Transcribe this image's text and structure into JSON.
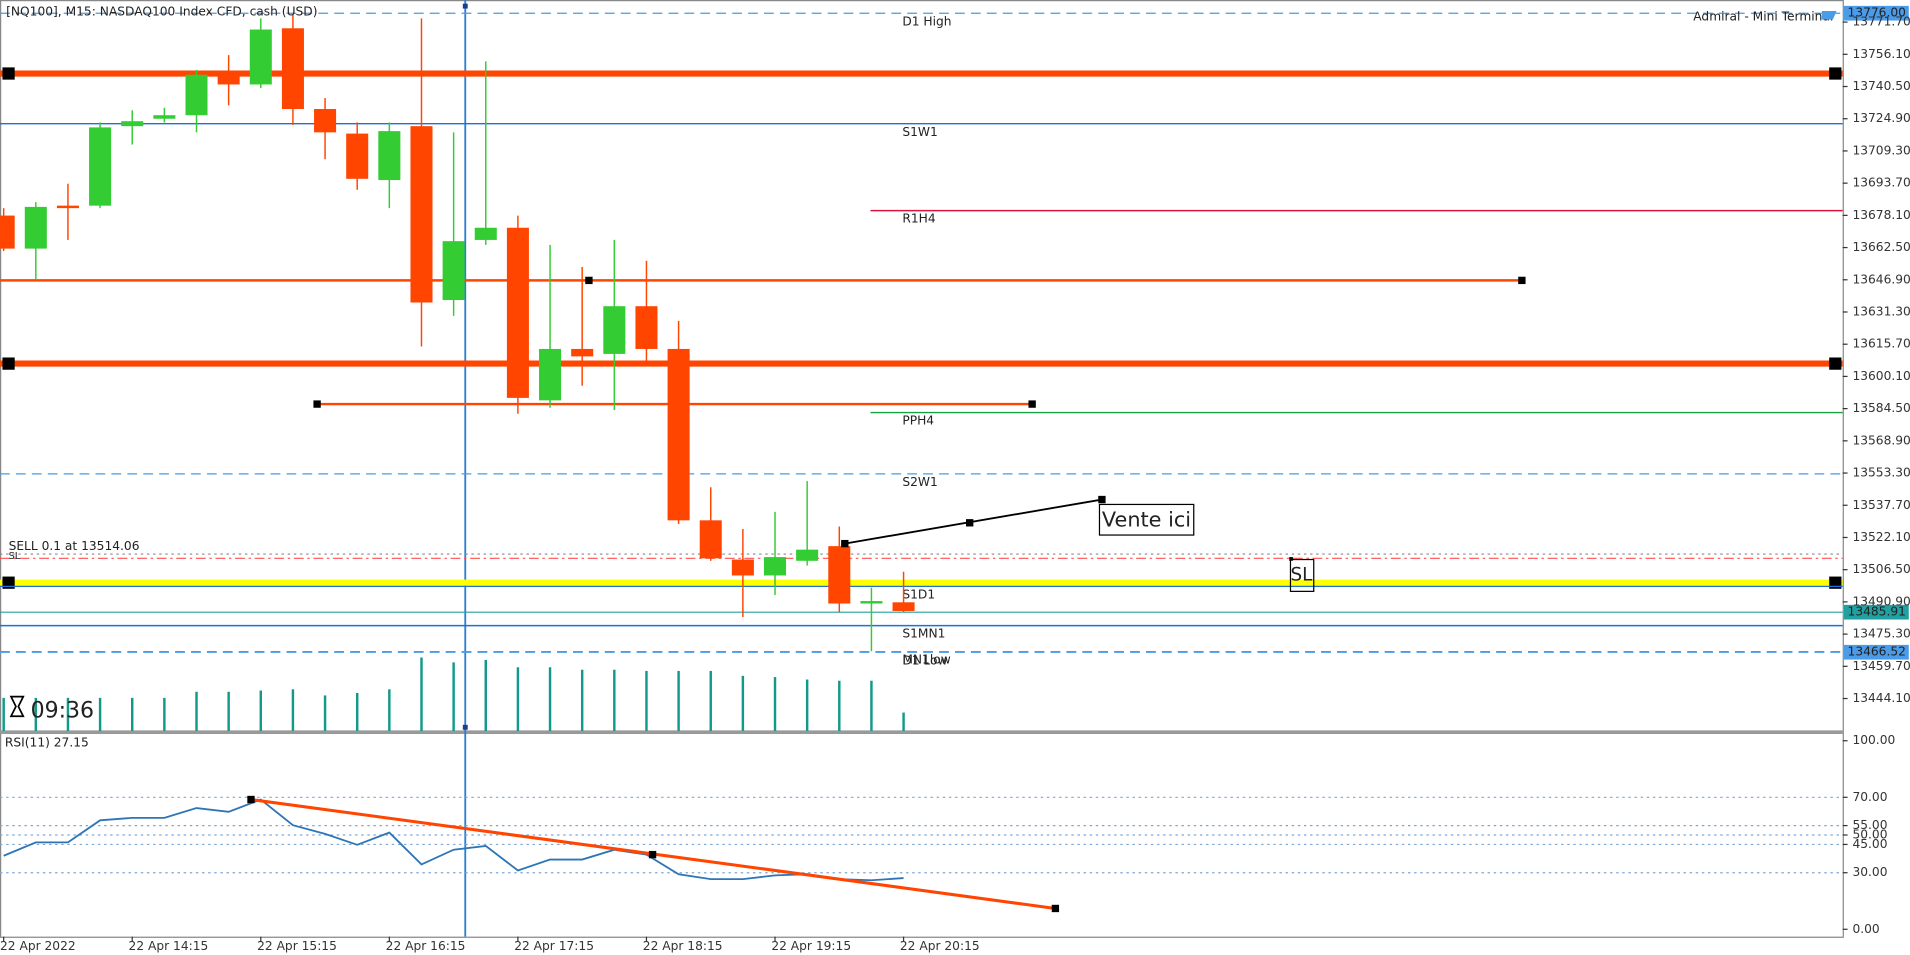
{
  "header": {
    "symbol_title": "[NQ100], M15:  NASDAQ100 Index CFD, cash (USD)",
    "terminal": "Admiral - Mini Terminal",
    "timer": "09:36"
  },
  "chart_data": [
    {
      "type": "candlestick",
      "categories": [
        "22 Apr 2022",
        null,
        null,
        null,
        "22 Apr 14:15",
        null,
        null,
        null,
        "22 Apr 15:15",
        null,
        null,
        null,
        "22 Apr 16:15",
        null,
        null,
        null,
        "22 Apr 17:15",
        null,
        null,
        null,
        "22 Apr 18:15",
        null,
        null,
        null,
        "22 Apr 19:15",
        null,
        null,
        null,
        "22 Apr 20:15"
      ],
      "open": [
        13678.0,
        13662.0,
        13682.8,
        13682.8,
        13721.3,
        13724.9,
        13726.6,
        13746.2,
        13741.5,
        13768.7,
        13729.6,
        13717.7,
        13695.2,
        13721.3,
        13637.1,
        13666.2,
        13672.1,
        13588.5,
        13613.4,
        13611.0,
        13634.1,
        13613.4,
        13530.4,
        13511.4,
        13503.7,
        13510.8,
        13517.9,
        13490.7,
        13490.7
      ],
      "high": [
        13681.6,
        13684.5,
        13693.4,
        13723.1,
        13729.0,
        13730.2,
        13748.6,
        13755.7,
        13773.5,
        13775.3,
        13734.9,
        13723.1,
        13723.1,
        13773.5,
        13718.3,
        13752.7,
        13678.0,
        13663.8,
        13653.1,
        13666.2,
        13656.1,
        13627.0,
        13546.4,
        13526.2,
        13534.5,
        13549.4,
        13527.4,
        13497.8,
        13505.5
      ],
      "low": [
        13660.8,
        13647.2,
        13666.2,
        13681.6,
        13712.4,
        13723.1,
        13718.3,
        13731.4,
        13739.7,
        13721.9,
        13705.3,
        13690.5,
        13681.6,
        13614.6,
        13629.4,
        13663.8,
        13582.0,
        13584.9,
        13595.6,
        13583.8,
        13607.5,
        13528.6,
        13510.8,
        13483.6,
        13494.2,
        13508.5,
        13485.9,
        13467.0,
        13485.9
      ],
      "close": [
        13662.0,
        13682.2,
        13681.6,
        13720.7,
        13723.7,
        13726.6,
        13746.2,
        13741.5,
        13768.1,
        13729.6,
        13718.3,
        13695.8,
        13718.9,
        13635.9,
        13665.6,
        13672.1,
        13589.7,
        13613.4,
        13609.8,
        13634.1,
        13613.4,
        13530.4,
        13512.0,
        13503.7,
        13512.6,
        13516.2,
        13490.1,
        13491.3,
        13486.5
      ],
      "volumes": [
        27,
        27,
        27,
        27,
        27,
        27,
        32,
        32,
        33,
        34,
        29,
        31,
        34,
        60,
        56,
        58,
        52,
        52,
        50,
        50,
        49,
        49,
        49,
        45,
        44,
        42,
        41,
        41,
        15
      ],
      "volume_lim": [
        0,
        100
      ],
      "up_color": "#33cc33",
      "down_color": "#ff4500",
      "volume_color": "#12998c",
      "ylim": [
        13428.4,
        13782.4
      ],
      "yticks": [
        {
          "value": 13771.7,
          "label": "13771.70"
        },
        {
          "value": 13756.1,
          "label": "13756.10"
        },
        {
          "value": 13740.5,
          "label": "13740.50"
        },
        {
          "value": 13724.9,
          "label": "13724.90"
        },
        {
          "value": 13709.3,
          "label": "13709.30"
        },
        {
          "value": 13693.7,
          "label": "13693.70"
        },
        {
          "value": 13678.1,
          "label": "13678.10"
        },
        {
          "value": 13662.5,
          "label": "13662.50"
        },
        {
          "value": 13646.9,
          "label": "13646.90"
        },
        {
          "value": 13631.3,
          "label": "13631.30"
        },
        {
          "value": 13615.7,
          "label": "13615.70"
        },
        {
          "value": 13600.1,
          "label": "13600.10"
        },
        {
          "value": 13584.5,
          "label": "13584.50"
        },
        {
          "value": 13568.9,
          "label": "13568.90"
        },
        {
          "value": 13553.3,
          "label": "13553.30"
        },
        {
          "value": 13537.7,
          "label": "13537.70"
        },
        {
          "value": 13522.1,
          "label": "13522.10"
        },
        {
          "value": 13506.5,
          "label": "13506.50"
        },
        {
          "value": 13490.9,
          "label": "13490.90"
        },
        {
          "value": 13475.3,
          "label": "13475.30"
        },
        {
          "value": 13459.7,
          "label": "13459.70"
        },
        {
          "value": 13444.1,
          "label": "13444.10"
        }
      ],
      "grid": false,
      "levels": [
        {
          "value": 13776.0,
          "value_label": "13776.00",
          "label": "D1 High",
          "color": "#4a9be8",
          "dash": "dashed",
          "width": 1
        },
        {
          "value": 13746.8,
          "color": "#ff4500",
          "dash": "solid",
          "width": 5
        },
        {
          "value": 13722.5,
          "label": "S1W1",
          "color": "#1e6fd9",
          "dash": "solid",
          "width": 1.2
        },
        {
          "value": 13680.4,
          "label": "R1H4",
          "color": "#dc143c",
          "dash": "solid",
          "width": 1.2
        },
        {
          "value": 13646.6,
          "color": "#ff4500",
          "dash": "solid",
          "width": 2
        },
        {
          "value": 13606.3,
          "color": "#ff4500",
          "dash": "solid",
          "width": 5
        },
        {
          "value": 13586.7,
          "color": "#ff4500",
          "dash": "solid",
          "width": 2
        },
        {
          "value": 13582.6,
          "label": "PPH4",
          "color": "#14a040",
          "dash": "solid",
          "width": 1.2
        },
        {
          "value": 13552.9,
          "label": "S2W1",
          "color": "#4a9be8",
          "dash": "dashed",
          "width": 1
        },
        {
          "value": 13514.06,
          "label": "SELL 0.1 at 13514.06",
          "color": "#888888",
          "dash": "dotted",
          "width": 1
        },
        {
          "value": 13512.0,
          "label": "SL",
          "color": "#ff5050",
          "dash": "dashdot",
          "width": 1
        },
        {
          "value": 13500.2,
          "color": "#ffff00",
          "dash": "solid",
          "width": 5
        },
        {
          "value": 13498.4,
          "label": "S1D1",
          "color": "#1e6fd9",
          "dash": "solid",
          "width": 1
        },
        {
          "value": 13485.91,
          "value_label": "13485.91",
          "color": "#20a0a0",
          "dash": "solid",
          "width": 1
        },
        {
          "value": 13479.4,
          "label": "S1MN1",
          "color": "#1e6fd9",
          "dash": "solid",
          "width": 1.2
        },
        {
          "value": 13466.52,
          "value_label": "13466.52",
          "label": "D1 Low",
          "color": "#4a9be8",
          "dash": "dashed",
          "width": 1
        },
        {
          "value": 13466.8,
          "label": "MN1low",
          "color": "#4a9be8",
          "dash": "dashed",
          "width": 1
        }
      ],
      "annotations": {
        "entry": "Vente ici",
        "stop": "SL"
      }
    },
    {
      "type": "line",
      "title": "RSI(11) 27.15",
      "color": "#2e75b6",
      "values": [
        39.0,
        46.1,
        46.1,
        57.8,
        59.1,
        59.1,
        64.3,
        62.3,
        68.8,
        55.2,
        50.6,
        44.8,
        51.3,
        34.4,
        42.2,
        44.2,
        31.2,
        37.0,
        37.0,
        42.2,
        39.6,
        29.2,
        26.6,
        26.6,
        28.6,
        29.2,
        26.6,
        26.0,
        27.15
      ],
      "ylim": [
        -3.9,
        103.9
      ],
      "yticks": [
        {
          "value": 100,
          "label": "100.00"
        },
        {
          "value": 70,
          "label": "70.00"
        },
        {
          "value": 55,
          "label": "55.00"
        },
        {
          "value": 50,
          "label": "50.00"
        },
        {
          "value": 45,
          "label": "45.00"
        },
        {
          "value": 30,
          "label": "30.00"
        },
        {
          "value": 0,
          "label": "0.00"
        }
      ],
      "grid": true
    }
  ]
}
